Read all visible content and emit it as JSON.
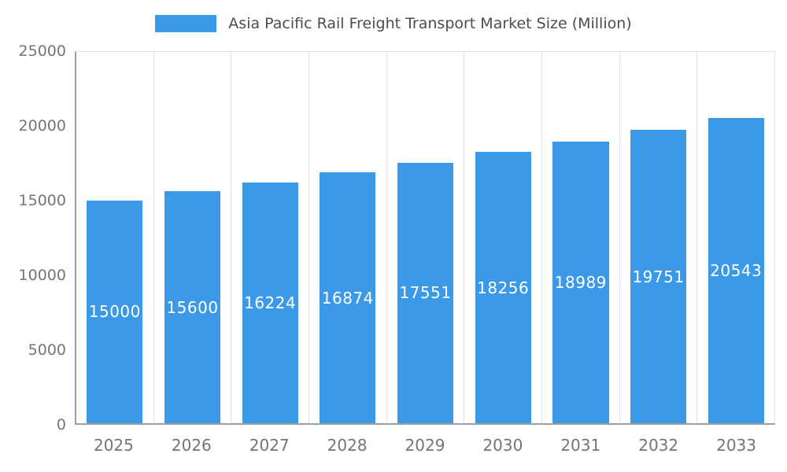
{
  "colors": {
    "bar": "#3B99E8",
    "axis": "#9e9e9e",
    "grid": "#e2e2e2",
    "tick_label": "#757575",
    "title": "#4d4d4d",
    "bar_label": "#ffffff"
  },
  "legend": {
    "label": "Asia Pacific Rail Freight Transport Market Size (Million)"
  },
  "chart_data": {
    "type": "bar",
    "title": "Asia Pacific Rail Freight Transport Market Size (Million)",
    "categories": [
      "2025",
      "2026",
      "2027",
      "2028",
      "2029",
      "2030",
      "2031",
      "2032",
      "2033"
    ],
    "values": [
      15000,
      15600,
      16224,
      16874,
      17551,
      18256,
      18989,
      19751,
      20543
    ],
    "xlabel": "",
    "ylabel": "",
    "ylim": [
      0,
      25000
    ],
    "yticks": [
      0,
      5000,
      10000,
      15000,
      20000,
      25000
    ],
    "grid": "vertical-only",
    "legend_position": "top-center",
    "value_labels": "inside-center-white"
  }
}
